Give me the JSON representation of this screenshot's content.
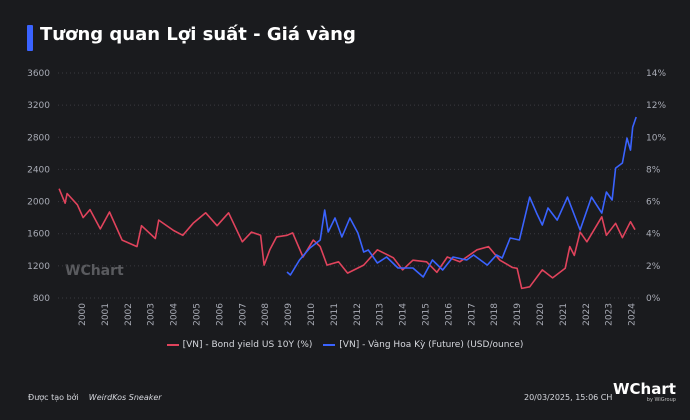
{
  "title": "Tương quan Lợi suất - Giá vàng",
  "colors": {
    "accent": "#3a63ff",
    "bond": "#e0435c",
    "gold": "#3a63ff",
    "background": "#1a1b1e"
  },
  "watermark": "WChart",
  "footer": {
    "created_by_label": "Được tạo bởi",
    "author": "WeirdKos Sneaker",
    "timestamp": "20/03/2025, 15:06 CH",
    "logo": "WChart",
    "logo_sub": "by WiGroup"
  },
  "chart_data": {
    "type": "line",
    "grid": true,
    "legend_position": "bottom",
    "x_ticks": [
      "2000",
      "2001",
      "2002",
      "2003",
      "2004",
      "2005",
      "2006",
      "2007",
      "2008",
      "2009",
      "2010",
      "2011",
      "2012",
      "2013",
      "2014",
      "2015",
      "2016",
      "2017",
      "2018",
      "2019",
      "2020",
      "2021",
      "2022",
      "2023",
      "2024"
    ],
    "y_left": {
      "ticks": [
        "800",
        "1200",
        "1600",
        "2000",
        "2400",
        "2800",
        "3200",
        "3600"
      ],
      "range": [
        800,
        3600
      ]
    },
    "y_right": {
      "ticks": [
        "0%",
        "2%",
        "4%",
        "6%",
        "8%",
        "10%",
        "12%",
        "14%"
      ],
      "range": [
        0,
        14
      ]
    },
    "series": [
      {
        "name": "[VN] - Bond yield US 10Y (%)",
        "axis": "right",
        "color": "#e0435c",
        "x": [
          1999.0,
          1999.26,
          1999.35,
          1999.8,
          2000.05,
          2000.35,
          2000.8,
          2001.2,
          2001.75,
          2002.4,
          2002.6,
          2003.2,
          2003.35,
          2004.0,
          2004.4,
          2004.85,
          2005.4,
          2005.9,
          2006.4,
          2007.0,
          2007.4,
          2007.8,
          2007.95,
          2008.2,
          2008.5,
          2008.95,
          2009.2,
          2009.65,
          2010.1,
          2010.4,
          2010.7,
          2011.2,
          2011.6,
          2012.3,
          2012.9,
          2013.6,
          2014.0,
          2014.45,
          2015.05,
          2015.5,
          2015.95,
          2016.5,
          2017.25,
          2017.75,
          2018.25,
          2018.8,
          2019.0,
          2019.2,
          2019.55,
          2020.1,
          2020.55,
          2021.1,
          2021.3,
          2021.5,
          2021.75,
          2022.05,
          2022.7,
          2022.9,
          2023.3,
          2023.6,
          2023.95,
          2024.15
        ],
        "y": [
          6.8,
          5.9,
          6.5,
          5.8,
          5.0,
          5.5,
          4.3,
          5.35,
          3.6,
          3.2,
          4.5,
          3.7,
          4.85,
          4.2,
          3.9,
          4.65,
          5.3,
          4.5,
          5.3,
          3.5,
          4.1,
          3.9,
          2.05,
          3.0,
          3.8,
          3.9,
          4.05,
          2.55,
          3.6,
          3.2,
          2.05,
          2.25,
          1.55,
          2.05,
          3.0,
          2.5,
          1.75,
          2.35,
          2.25,
          1.6,
          2.55,
          2.25,
          3.0,
          3.2,
          2.35,
          1.9,
          1.85,
          0.6,
          0.7,
          1.75,
          1.25,
          1.85,
          3.2,
          2.65,
          4.1,
          3.5,
          5.05,
          3.9,
          4.65,
          3.75,
          4.75,
          4.25
        ]
      },
      {
        "name": "[VN] - Vàng Hoa Kỳ (Future) (USD/ounce)",
        "axis": "left",
        "color": "#3a63ff",
        "x": [
          2008.95,
          2009.1,
          2009.5,
          2009.95,
          2010.4,
          2010.6,
          2010.75,
          2011.05,
          2011.35,
          2011.7,
          2012.05,
          2012.3,
          2012.5,
          2012.9,
          2013.3,
          2013.8,
          2014.45,
          2014.9,
          2015.3,
          2015.75,
          2016.2,
          2016.8,
          2017.1,
          2017.7,
          2018.1,
          2018.35,
          2018.7,
          2019.1,
          2019.55,
          2019.85,
          2020.1,
          2020.35,
          2020.75,
          2021.2,
          2021.75,
          2022.25,
          2022.7,
          2022.9,
          2023.15,
          2023.3,
          2023.6,
          2023.8,
          2023.95,
          2024.05,
          2024.2
        ],
        "y": [
          1124,
          1086,
          1273,
          1422,
          1522,
          1895,
          1621,
          1795,
          1559,
          1795,
          1609,
          1372,
          1397,
          1235,
          1310,
          1173,
          1173,
          1061,
          1273,
          1148,
          1310,
          1273,
          1335,
          1210,
          1335,
          1298,
          1547,
          1522,
          2056,
          1857,
          1708,
          1920,
          1770,
          2056,
          1646,
          2056,
          1857,
          2119,
          2019,
          2417,
          2480,
          2790,
          2641,
          2927,
          3052
        ]
      }
    ]
  }
}
